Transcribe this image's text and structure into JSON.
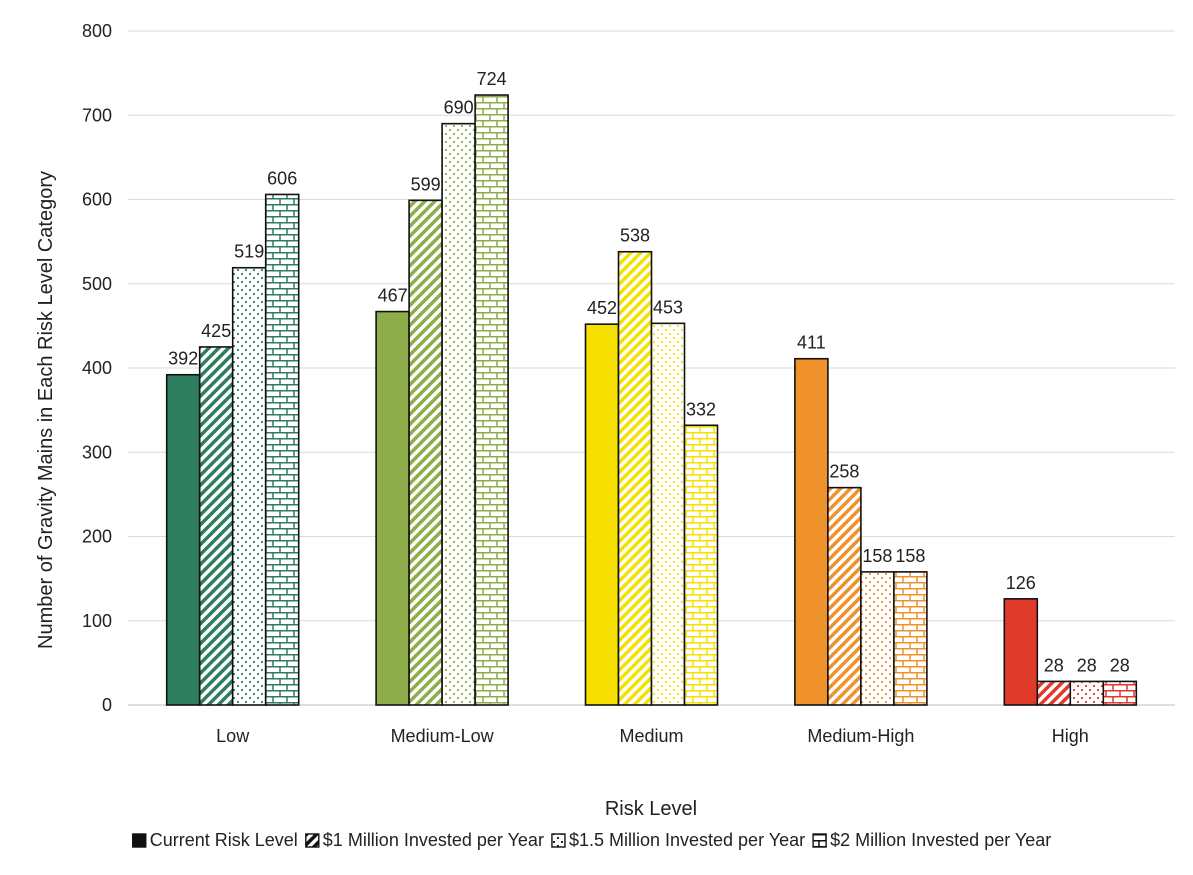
{
  "chart_data": {
    "type": "bar",
    "title": "",
    "xlabel": "Risk Level",
    "ylabel": "Number of Gravity Mains in Each Risk Level Category",
    "ylim": [
      0,
      800
    ],
    "yticks": [
      0,
      100,
      200,
      300,
      400,
      500,
      600,
      700,
      800
    ],
    "grid": "horizontal",
    "legend_position": "bottom",
    "categories": [
      "Low",
      "Medium-Low",
      "Medium",
      "Medium-High",
      "High"
    ],
    "category_colors": [
      "#2e7d5f",
      "#8fac4a",
      "#f5e000",
      "#f0922c",
      "#e03a2b"
    ],
    "series": [
      {
        "name": "Current Risk Level",
        "pattern": "solid",
        "values": [
          392,
          467,
          452,
          411,
          126
        ]
      },
      {
        "name": "$1 Million Invested per Year",
        "pattern": "diagonal",
        "values": [
          425,
          599,
          538,
          258,
          28
        ]
      },
      {
        "name": "$1.5 Million Invested per Year",
        "pattern": "dots",
        "values": [
          519,
          690,
          453,
          158,
          28
        ]
      },
      {
        "name": "$2 Million Invested per Year",
        "pattern": "brick",
        "values": [
          606,
          724,
          332,
          158,
          28
        ]
      }
    ]
  }
}
